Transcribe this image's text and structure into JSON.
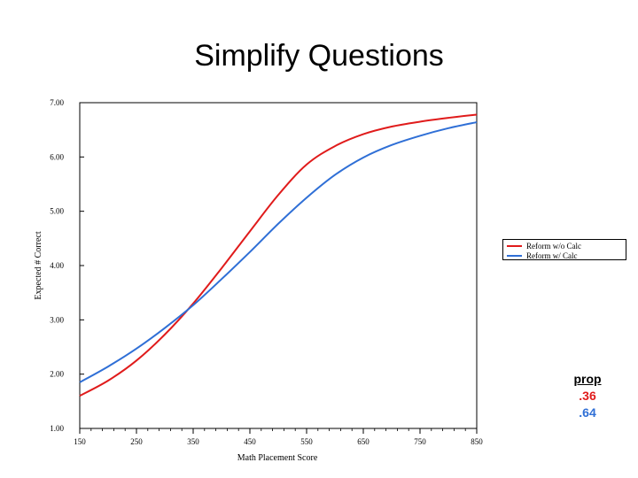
{
  "title": "Simplify Questions",
  "colors": {
    "red": "#e01b1b",
    "blue": "#2f6fd6"
  },
  "chart_data": {
    "type": "line",
    "title": "",
    "xlabel": "Math Placement Score",
    "ylabel": "Expected # Correct",
    "xlim": [
      150,
      850
    ],
    "ylim": [
      1.0,
      7.0
    ],
    "x_ticks": [
      "150",
      "250",
      "350",
      "450",
      "550",
      "650",
      "750",
      "850"
    ],
    "y_ticks": [
      "1.00",
      "2.00",
      "3.00",
      "4.00",
      "5.00",
      "6.00",
      "7.00"
    ],
    "grid": false,
    "legend_position": "right",
    "x": [
      150,
      200,
      250,
      300,
      350,
      400,
      450,
      500,
      550,
      600,
      650,
      700,
      750,
      800,
      850
    ],
    "series": [
      {
        "name": "Reform w/o Calc",
        "color": "#e01b1b",
        "values": [
          1.6,
          1.88,
          2.25,
          2.73,
          3.3,
          3.95,
          4.63,
          5.3,
          5.86,
          6.2,
          6.42,
          6.56,
          6.65,
          6.72,
          6.78
        ]
      },
      {
        "name": "Reform w/ Calc",
        "color": "#2f6fd6",
        "values": [
          1.85,
          2.14,
          2.47,
          2.85,
          3.27,
          3.75,
          4.25,
          4.77,
          5.25,
          5.67,
          5.99,
          6.22,
          6.39,
          6.53,
          6.64
        ]
      }
    ]
  },
  "prop": {
    "header": "prop",
    "values": [
      ".36",
      ".64"
    ]
  }
}
